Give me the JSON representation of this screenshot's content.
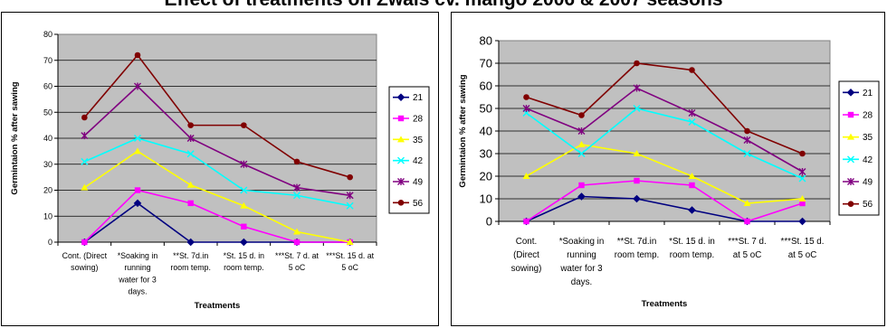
{
  "title": "Effect of treatments on Zwais cv. mango 2006 & 2007 seasons",
  "colors": {
    "plot_bg": "#c0c0c0",
    "21": "#000080",
    "28": "#ff00ff",
    "35": "#ffff00",
    "42": "#00ffff",
    "49": "#800080",
    "56": "#800000"
  },
  "chart_data": [
    {
      "type": "line",
      "ylabel": "Germintaion % after sawing",
      "xlabel": "Treatments",
      "ylim": [
        0,
        80
      ],
      "ytick_step": 10,
      "grid": true,
      "legend": "right",
      "categories": [
        [
          "Cont. (Direct",
          "sowing)"
        ],
        [
          "*Soaking in",
          "running",
          "water for 3",
          "days."
        ],
        [
          "**St. 7d.in",
          "room temp."
        ],
        [
          "*St. 15 d. in",
          "room temp."
        ],
        [
          "***St. 7 d. at",
          "5 oC"
        ],
        [
          "***St. 15 d. at",
          "5 oC"
        ]
      ],
      "series": [
        {
          "name": "21",
          "marker": "diamond",
          "values": [
            0,
            15,
            0,
            0,
            0,
            0
          ]
        },
        {
          "name": "28",
          "marker": "square",
          "values": [
            0,
            20,
            15,
            6,
            0,
            0
          ]
        },
        {
          "name": "35",
          "marker": "triangle",
          "values": [
            21,
            35,
            22,
            14,
            4,
            0
          ]
        },
        {
          "name": "42",
          "marker": "x",
          "values": [
            31,
            40,
            34,
            20,
            18,
            14
          ]
        },
        {
          "name": "49",
          "marker": "star",
          "values": [
            41,
            60,
            40,
            30,
            21,
            18
          ]
        },
        {
          "name": "56",
          "marker": "circle",
          "values": [
            48,
            72,
            45,
            45,
            31,
            25
          ]
        }
      ]
    },
    {
      "type": "line",
      "ylabel": "Germintaion % after sawing",
      "xlabel": "Treatments",
      "ylim": [
        0,
        80
      ],
      "ytick_step": 10,
      "grid": true,
      "legend": "right",
      "categories": [
        [
          "Cont.",
          "(Direct",
          "sowing)"
        ],
        [
          "*Soaking in",
          "running",
          "water for 3",
          "days."
        ],
        [
          "**St. 7d.in",
          "room temp."
        ],
        [
          "*St. 15 d. in",
          "room temp."
        ],
        [
          "***St. 7 d.",
          "at 5 oC"
        ],
        [
          "***St. 15 d.",
          "at 5 oC"
        ]
      ],
      "series": [
        {
          "name": "21",
          "marker": "diamond",
          "values": [
            0,
            11,
            10,
            5,
            0,
            0
          ]
        },
        {
          "name": "28",
          "marker": "square",
          "values": [
            0,
            16,
            18,
            16,
            0,
            8
          ]
        },
        {
          "name": "35",
          "marker": "triangle",
          "values": [
            20,
            34,
            30,
            20,
            8,
            10
          ]
        },
        {
          "name": "42",
          "marker": "x",
          "values": [
            48,
            30,
            50,
            44,
            30,
            19
          ]
        },
        {
          "name": "49",
          "marker": "star",
          "values": [
            50,
            40,
            59,
            48,
            36,
            22
          ]
        },
        {
          "name": "56",
          "marker": "circle",
          "values": [
            55,
            47,
            70,
            67,
            40,
            30
          ]
        }
      ]
    }
  ]
}
